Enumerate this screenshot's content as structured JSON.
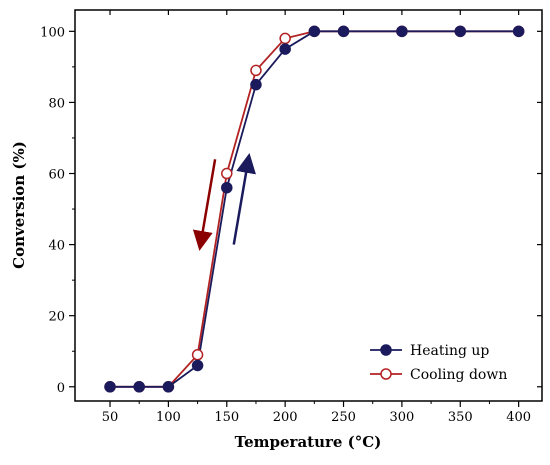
{
  "chart_data": {
    "type": "line",
    "x": [
      50,
      75,
      100,
      125,
      150,
      175,
      200,
      225,
      250,
      300,
      350,
      400
    ],
    "xlabel": "Temperature (°C)",
    "ylabel": "Conversion (%)",
    "xticks": [
      50,
      100,
      150,
      200,
      250,
      300,
      350,
      400
    ],
    "yticks": [
      0,
      20,
      40,
      60,
      80,
      100
    ],
    "xlim": [
      20,
      420
    ],
    "ylim": [
      -4,
      106
    ],
    "grid": false,
    "legend_position": "bottom-right",
    "series": [
      {
        "name": "Heating up",
        "values": [
          0,
          0,
          0,
          6,
          56,
          85,
          95,
          100,
          100,
          100,
          100,
          100
        ],
        "color": "#1a1a5c",
        "marker": "filled-circle"
      },
      {
        "name": "Cooling down",
        "values": [
          0,
          0,
          0,
          9,
          60,
          89,
          98,
          100,
          100,
          100,
          100,
          100
        ],
        "color": "#b22222",
        "marker": "open-circle"
      }
    ],
    "annotations": [
      {
        "kind": "arrow",
        "direction": "down",
        "color": "#8b0000",
        "series": "Cooling down"
      },
      {
        "kind": "arrow",
        "direction": "up",
        "color": "#1a1a5c",
        "series": "Heating up"
      }
    ]
  }
}
